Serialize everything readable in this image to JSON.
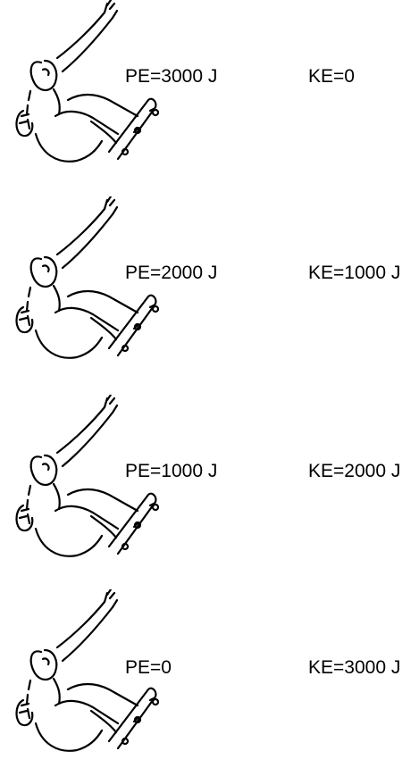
{
  "stages": [
    {
      "pe": "PE=3000 J",
      "ke": "KE=0"
    },
    {
      "pe": "PE=2000 J",
      "ke": "KE=1000 J"
    },
    {
      "pe": "PE=1000 J",
      "ke": "KE=2000 J"
    },
    {
      "pe": "PE=0",
      "ke": "KE=3000 J"
    }
  ]
}
